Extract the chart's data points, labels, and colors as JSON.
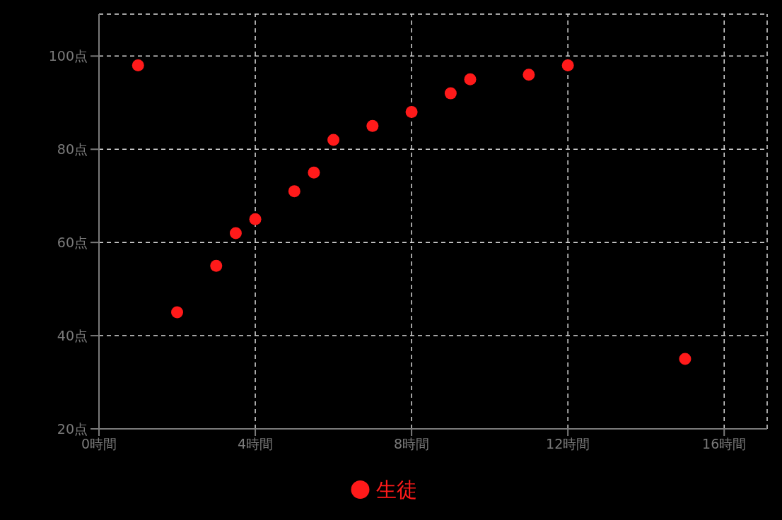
{
  "chart_data": {
    "type": "scatter",
    "x": [
      1,
      2,
      3,
      3.5,
      4,
      5,
      5.5,
      6,
      7,
      8,
      9,
      9.5,
      11,
      12,
      15
    ],
    "series": [
      {
        "name": "生徒",
        "color": "#ff1a1a",
        "values": [
          98,
          45,
          55,
          62,
          65,
          71,
          75,
          82,
          85,
          88,
          92,
          95,
          96,
          98,
          35
        ]
      }
    ],
    "xlim": [
      0,
      17.1
    ],
    "ylim": [
      20,
      109
    ],
    "xticks": [
      {
        "value": 0,
        "label": "0時間"
      },
      {
        "value": 4,
        "label": "4時間"
      },
      {
        "value": 8,
        "label": "8時間"
      },
      {
        "value": 12,
        "label": "12時間"
      },
      {
        "value": 16,
        "label": "16時間"
      }
    ],
    "yticks": [
      {
        "value": 20,
        "label": "20点"
      },
      {
        "value": 40,
        "label": "40点"
      },
      {
        "value": 60,
        "label": "60点"
      },
      {
        "value": 80,
        "label": "80点"
      },
      {
        "value": 100,
        "label": "100点"
      }
    ],
    "grid": true,
    "legend": "bottom",
    "marker": "circle"
  }
}
